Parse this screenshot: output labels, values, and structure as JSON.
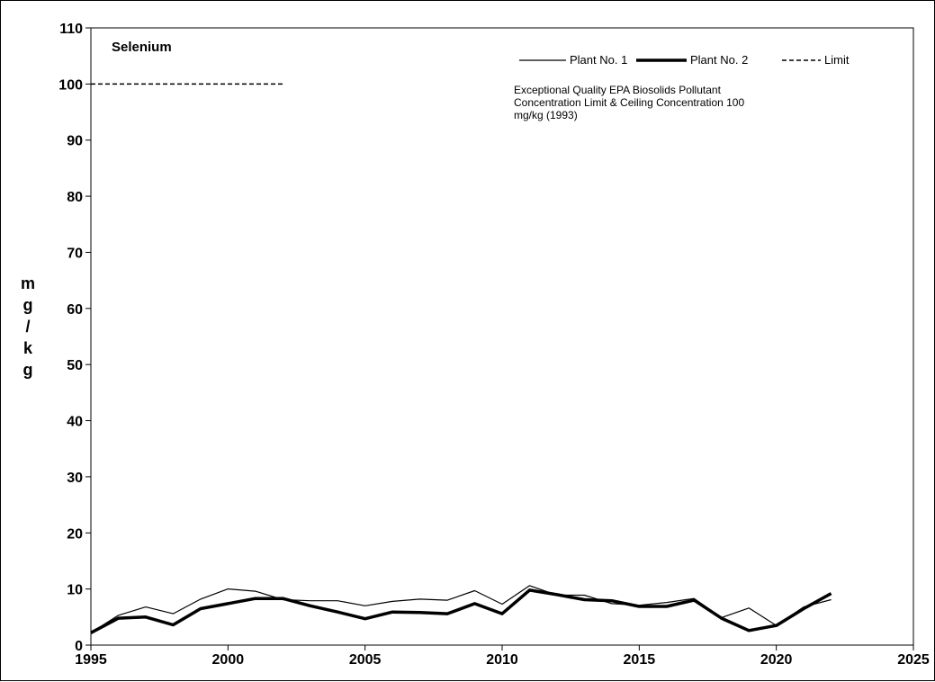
{
  "chart_data": {
    "type": "line",
    "title": "Selenium",
    "xlabel": "",
    "ylabel": "mg/kg",
    "xlim": [
      1995,
      2025
    ],
    "ylim": [
      0,
      110
    ],
    "x_ticks": [
      "1995",
      "2000",
      "2005",
      "2010",
      "2015",
      "2020",
      "2025"
    ],
    "y_ticks": [
      "0",
      "10",
      "20",
      "30",
      "40",
      "50",
      "60",
      "70",
      "80",
      "90",
      "100",
      "110"
    ],
    "grid": false,
    "legend_position": "top-right",
    "series": [
      {
        "name": "Plant No. 1",
        "style": "thin",
        "color": "#000000",
        "x": [
          1995,
          1996,
          1997,
          1998,
          1999,
          2000,
          2001,
          2002,
          2003,
          2004,
          2005,
          2006,
          2007,
          2008,
          2009,
          2010,
          2011,
          2012,
          2013,
          2014,
          2015,
          2016,
          2017,
          2018,
          2019,
          2020,
          2021,
          2022
        ],
        "values": [
          2.2,
          5.3,
          6.8,
          5.6,
          8.2,
          10.0,
          9.6,
          8.1,
          7.9,
          7.9,
          7.0,
          7.8,
          8.2,
          8.0,
          9.7,
          7.3,
          10.6,
          8.9,
          8.9,
          7.4,
          7.1,
          7.6,
          8.3,
          4.9,
          6.6,
          3.5,
          6.8,
          8.1
        ]
      },
      {
        "name": "Plant No. 2",
        "style": "thick",
        "color": "#000000",
        "x": [
          1995,
          1996,
          1997,
          1998,
          1999,
          2000,
          2001,
          2002,
          2003,
          2004,
          2005,
          2006,
          2007,
          2008,
          2009,
          2010,
          2011,
          2012,
          2013,
          2014,
          2015,
          2016,
          2017,
          2018,
          2019,
          2020,
          2021,
          2022
        ],
        "values": [
          2.2,
          4.8,
          5.0,
          3.6,
          6.5,
          7.4,
          8.3,
          8.3,
          7.0,
          5.9,
          4.7,
          5.9,
          5.8,
          5.6,
          7.4,
          5.6,
          9.8,
          9.0,
          8.1,
          7.9,
          6.9,
          6.9,
          8.0,
          4.8,
          2.6,
          3.5,
          6.5,
          9.2
        ]
      },
      {
        "name": "Limit",
        "style": "dashed",
        "color": "#000000",
        "x": [
          1995,
          2002
        ],
        "values": [
          100,
          100
        ]
      }
    ],
    "annotations": [
      "Exceptional Quality EPA Biosolids Pollutant",
      "Concentration  Limit & Ceiling Concentration 100",
      "mg/kg (1993)"
    ]
  },
  "ylabel_chars": [
    "m",
    "g",
    "/",
    "k",
    "g"
  ]
}
